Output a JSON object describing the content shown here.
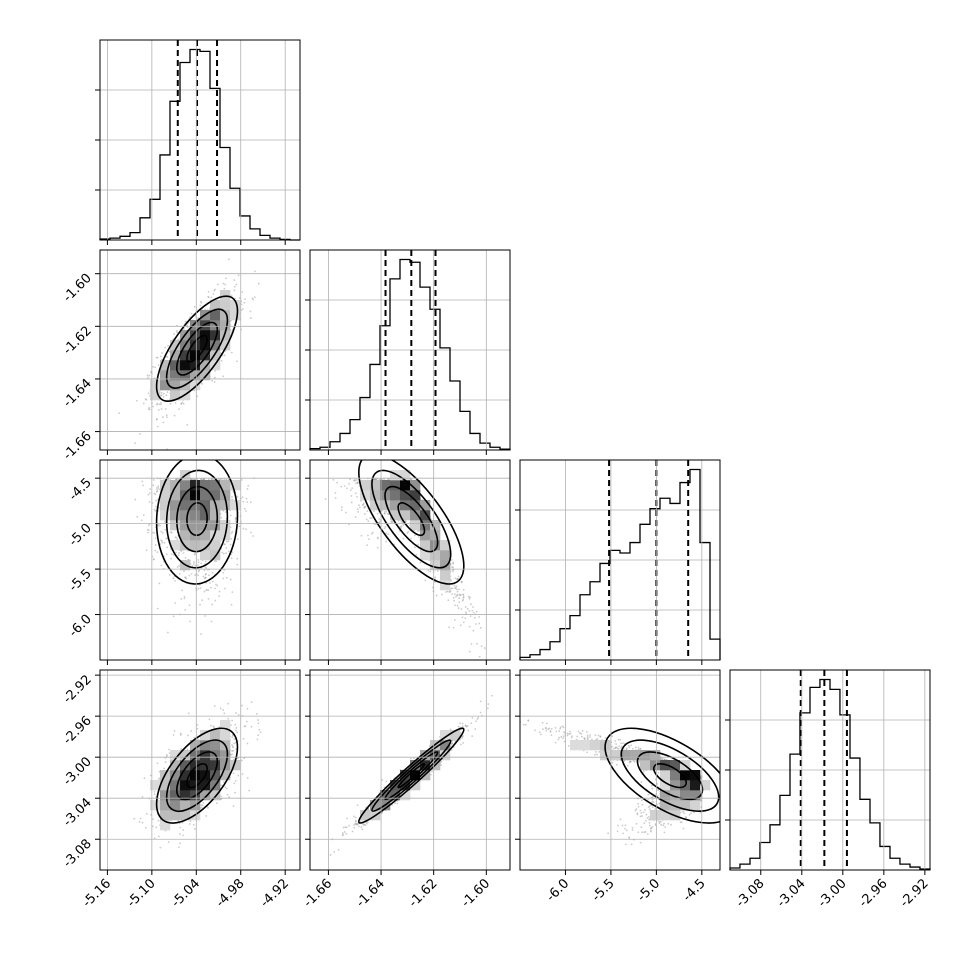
{
  "chart_data": {
    "type": "corner",
    "parameters": [
      {
        "id": "p0",
        "range": [
          -5.17,
          -4.9
        ],
        "ticks": [
          "-5.16",
          "-5.10",
          "-5.04",
          "-4.98",
          "-4.92"
        ],
        "quantiles": [
          -5.065,
          -5.039,
          -5.012
        ],
        "mean": -5.039,
        "sd": 0.026
      },
      {
        "id": "p1",
        "range": [
          -1.667,
          -1.591
        ],
        "ticks": [
          "-1.66",
          "-1.64",
          "-1.62",
          "-1.60"
        ],
        "quantiles": [
          -1.6383,
          -1.6285,
          -1.6193
        ],
        "mean": -1.6285,
        "sd": 0.0095
      },
      {
        "id": "p2",
        "range": [
          -6.5,
          -4.3
        ],
        "ticks": [
          "-6.0",
          "-5.5",
          "-5.0",
          "-4.5"
        ],
        "quantiles": [
          -5.52,
          -5.0,
          -4.65
        ],
        "mean": -5.0,
        "sd": 0.42
      },
      {
        "id": "p3",
        "range": [
          -3.11,
          -2.915
        ],
        "ticks": [
          "-3.08",
          "-3.04",
          "-3.00",
          "-2.96",
          "-2.92"
        ],
        "quantiles": [
          -3.041,
          -3.018,
          -2.996
        ],
        "mean": -3.018,
        "sd": 0.022
      }
    ],
    "histograms": [
      {
        "param": 0,
        "bins": [
          -5.17,
          -5.1565,
          -5.143,
          -5.1295,
          -5.116,
          -5.1025,
          -5.089,
          -5.0755,
          -5.062,
          -5.0485,
          -5.035,
          -5.0215,
          -5.008,
          -4.9945,
          -4.981,
          -4.9675,
          -4.954,
          -4.9405,
          -4.927,
          -4.9135,
          -4.9
        ],
        "counts": [
          0.5,
          1,
          2,
          4,
          12,
          22,
          46,
          75,
          96,
          103,
          102,
          82,
          50,
          28,
          13,
          6,
          2.5,
          1,
          0.3,
          0
        ]
      },
      {
        "param": 1,
        "bins": [
          -1.667,
          -1.6632,
          -1.6594,
          -1.6556,
          -1.6518,
          -1.648,
          -1.6442,
          -1.6404,
          -1.6366,
          -1.6328,
          -1.629,
          -1.6252,
          -1.6214,
          -1.6176,
          -1.6138,
          -1.61,
          -1.6062,
          -1.6024,
          -1.5986,
          -1.5948,
          -1.591
        ],
        "counts": [
          0.5,
          1,
          3,
          6,
          11,
          19,
          31,
          45,
          62,
          69,
          68,
          59,
          51,
          37,
          25,
          14,
          6,
          2.5,
          1,
          0.3
        ]
      },
      {
        "param": 2,
        "bins": [
          -6.5,
          -6.39,
          -6.28,
          -6.17,
          -6.06,
          -5.95,
          -5.84,
          -5.73,
          -5.62,
          -5.51,
          -5.4,
          -5.29,
          -5.18,
          -5.07,
          -4.96,
          -4.85,
          -4.74,
          -4.63,
          -4.52,
          -4.41,
          -4.3
        ],
        "counts": [
          1,
          2,
          4,
          7,
          12,
          17,
          25,
          30,
          37,
          42,
          41,
          45,
          52,
          58,
          62,
          60,
          68,
          73,
          45,
          8
        ]
      },
      {
        "param": 3,
        "bins": [
          -3.11,
          -3.1003,
          -3.0905,
          -3.0808,
          -3.071,
          -3.0613,
          -3.0515,
          -3.0418,
          -3.032,
          -3.0223,
          -3.0125,
          -3.0028,
          -2.993,
          -2.9833,
          -2.9735,
          -2.9638,
          -2.954,
          -2.9443,
          -2.9345,
          -2.9248,
          -2.915
        ],
        "counts": [
          1,
          3,
          6,
          14,
          23,
          38,
          59,
          80,
          93,
          97,
          92,
          79,
          57,
          36,
          24,
          12,
          6,
          3,
          1.5,
          0.5
        ]
      }
    ],
    "pairs": [
      {
        "x": 0,
        "y": 1,
        "correlation": 0.72
      },
      {
        "x": 0,
        "y": 2,
        "correlation": 0.05
      },
      {
        "x": 1,
        "y": 2,
        "correlation": -0.72
      },
      {
        "x": 0,
        "y": 3,
        "correlation": 0.6
      },
      {
        "x": 1,
        "y": 3,
        "correlation": 0.97
      },
      {
        "x": 2,
        "y": 3,
        "correlation": -0.6
      }
    ],
    "contour_levels_sigma": [
      0.5,
      1.0,
      1.5,
      2.0
    ],
    "grid": true
  }
}
